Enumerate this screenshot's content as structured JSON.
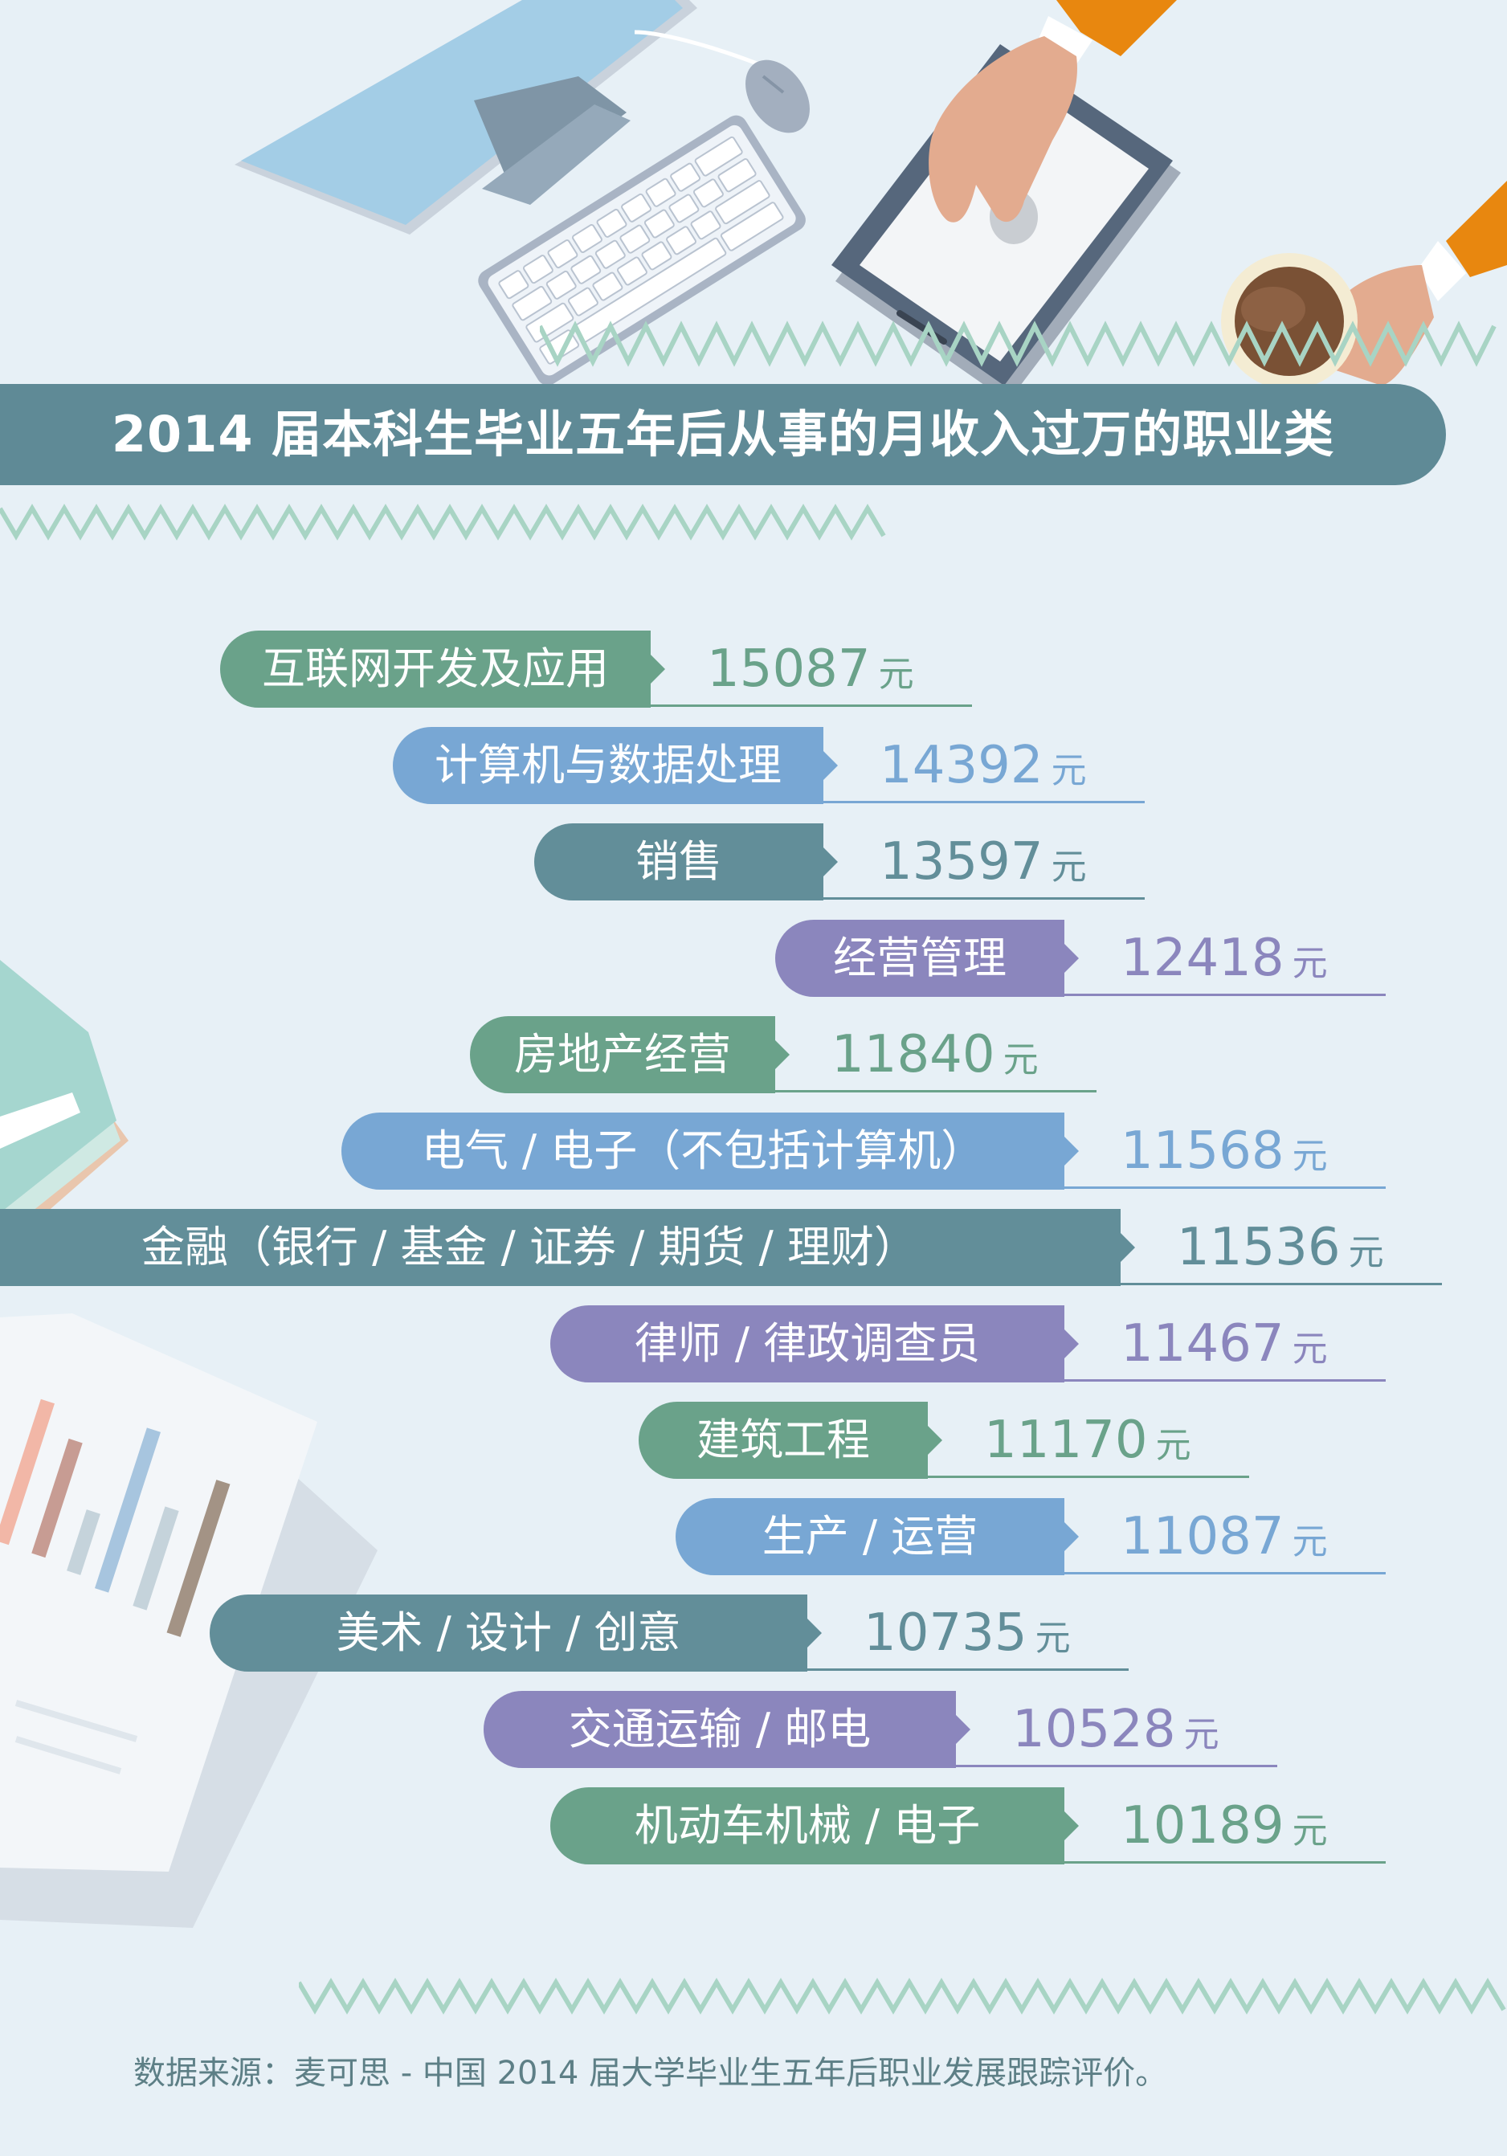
{
  "title": "2014 届本科生毕业五年后从事的月收入过万的职业类",
  "source": "数据来源：麦可思 - 中国 2014 届大学毕业生五年后职业发展跟踪评价。",
  "icons": [
    "monitor-icon",
    "keyboard-icon",
    "mouse-icon",
    "tablet-icon",
    "coffee-cup-icon",
    "hand-icon",
    "book-stack-icon",
    "report-paper-icon"
  ],
  "colors": {
    "background": "#e7f0f6",
    "banner": "#5f8a96",
    "green": "#6aa28a",
    "blue": "#78a7d4",
    "teal": "#628e99",
    "purple": "#8b86bd",
    "zigzag": "#a8d4c4"
  },
  "chart_data": {
    "type": "bar",
    "title": "2014 届本科生毕业五年后从事的月收入过万的职业类",
    "unit": "元",
    "categories": [
      "互联网开发及应用",
      "计算机与数据处理",
      "销售",
      "经营管理",
      "房地产经营",
      "电气 / 电子（不包括计算机）",
      "金融（银行 / 基金 / 证券 / 期货 / 理财）",
      "律师 / 律政调查员",
      "建筑工程",
      "生产 / 运营",
      "美术 / 设计 / 创意",
      "交通运输 / 邮电",
      "机动车机械 / 电子"
    ],
    "values": [
      15087,
      14392,
      13597,
      12418,
      11840,
      11568,
      11536,
      11467,
      11170,
      11087,
      10735,
      10528,
      10189
    ],
    "value_labels": [
      "15087",
      "14392",
      "13597",
      "12418",
      "11840",
      "11568",
      "11536",
      "11467",
      "11170",
      "11087",
      "10735",
      "10528",
      "10189"
    ],
    "colors": [
      "#6aa28a",
      "#78a7d4",
      "#628e99",
      "#8b86bd",
      "#6aa28a",
      "#78a7d4",
      "#628e99",
      "#8b86bd",
      "#6aa28a",
      "#78a7d4",
      "#628e99",
      "#8b86bd",
      "#6aa28a"
    ],
    "xlabel": "",
    "ylabel": ""
  }
}
